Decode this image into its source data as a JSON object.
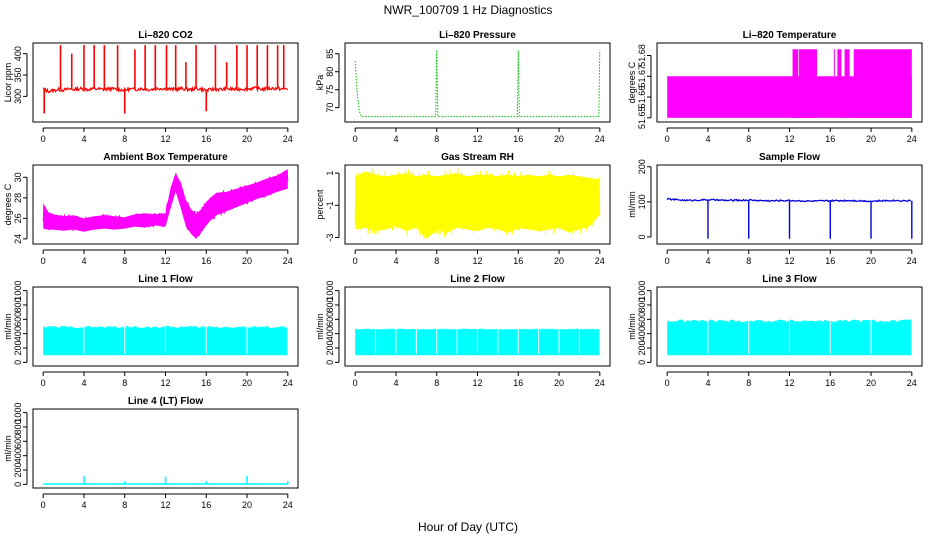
{
  "figure": {
    "title": "NWR_100709  1 Hz Diagnostics",
    "xlabel": "Hour of Day (UTC)"
  },
  "chart_data": [
    {
      "id": "co2",
      "type": "line",
      "title": "Li–820 CO2",
      "ylabel": "Licor ppm",
      "color": "#ff0000",
      "xlim": [
        -1,
        25
      ],
      "ylim": [
        240,
        425
      ],
      "xticks": [
        0,
        4,
        8,
        12,
        16,
        20,
        24
      ],
      "yticks": [
        300,
        350,
        400
      ],
      "series": [
        {
          "x": [
            0,
            0.5,
            1,
            1.5,
            2,
            2.5,
            3,
            3.5,
            4,
            4.5,
            5,
            5.5,
            6,
            6.5,
            7,
            7.5,
            8,
            8.5,
            9,
            9.5,
            10,
            10.5,
            11,
            11.5,
            12,
            12.5,
            13,
            13.5,
            14,
            14.5,
            15,
            15.5,
            16,
            16.5,
            17,
            17.5,
            18,
            18.5,
            19,
            19.5,
            20,
            20.5,
            21,
            21.5,
            22,
            22.5,
            23,
            23.5,
            24
          ],
          "values": [
            318,
            312,
            314,
            316,
            315,
            317,
            316,
            318,
            317,
            316,
            318,
            317,
            316,
            318,
            317,
            316,
            315,
            317,
            316,
            318,
            317,
            316,
            318,
            319,
            318,
            317,
            316,
            318,
            317,
            316,
            318,
            317,
            314,
            316,
            317,
            316,
            318,
            317,
            316,
            318,
            317,
            319,
            318,
            317,
            318,
            319,
            318,
            317,
            318
          ],
          "spike_hours": [
            1.7,
            2.8,
            4.0,
            5.0,
            6.0,
            7.3,
            9.0,
            10.0,
            11.0,
            12.1,
            13.0,
            14.0,
            15.0,
            16.9,
            18.0,
            19.0,
            20.0,
            21.0,
            22.0,
            23.0,
            23.6
          ],
          "spike_values": [
            420,
            400,
            420,
            420,
            420,
            420,
            410,
            420,
            420,
            420,
            420,
            380,
            420,
            420,
            380,
            420,
            420,
            420,
            420,
            420,
            420
          ],
          "dip_hours": [
            0.1,
            8.0,
            16.0
          ],
          "dip_values": [
            260,
            260,
            265
          ]
        }
      ]
    },
    {
      "id": "pressure",
      "type": "line",
      "title": "Li–820 Pressure",
      "ylabel": "kPa",
      "color": "#00bb00",
      "xlim": [
        -1,
        25
      ],
      "ylim": [
        66,
        88
      ],
      "xticks": [
        0,
        4,
        8,
        12,
        16,
        20,
        24
      ],
      "yticks": [
        70,
        75,
        80,
        85
      ],
      "series": [
        {
          "baseline": 67.5,
          "x": [
            0,
            0.2,
            0.4,
            0.6,
            1,
            4,
            7.9,
            8.0,
            8.1,
            12,
            15.9,
            16.0,
            16.1,
            20,
            23.9,
            24.0
          ],
          "values": [
            83,
            74,
            69,
            67.5,
            67.5,
            67.5,
            67.5,
            86,
            67.5,
            67.5,
            67.5,
            86,
            67.5,
            67.5,
            67.5,
            86
          ]
        }
      ]
    },
    {
      "id": "licor_temp",
      "type": "area",
      "title": "Li–820 Temperature",
      "ylabel": "degrees C",
      "color": "#ff00ff",
      "xlim": [
        -1,
        25
      ],
      "ylim": [
        51.648,
        51.686
      ],
      "xticks": [
        0,
        4,
        8,
        12,
        16,
        20,
        24
      ],
      "yticks": [
        51.65,
        51.66,
        51.67,
        51.68
      ],
      "series": [
        {
          "low": 51.65,
          "mid": 51.67,
          "high": 51.683,
          "high_intervals": [
            [
              12.3,
              14.7
            ],
            [
              16.7,
              17.1
            ],
            [
              17.4,
              17.9
            ],
            [
              18.3,
              24.0
            ]
          ]
        }
      ]
    },
    {
      "id": "box_temp",
      "type": "area",
      "title": "Ambient Box Temperature",
      "ylabel": "degrees C",
      "color": "#ff00ff",
      "xlim": [
        -1,
        25
      ],
      "ylim": [
        23.5,
        31.2
      ],
      "xticks": [
        0,
        4,
        8,
        12,
        16,
        20,
        24
      ],
      "yticks": [
        24,
        26,
        28,
        30
      ],
      "series": [
        {
          "x": [
            0,
            0.5,
            1,
            2,
            3,
            4,
            5,
            6,
            7,
            8,
            9,
            10,
            11,
            12,
            12.5,
            13,
            13.5,
            14,
            14.5,
            15,
            15.5,
            16,
            16.5,
            17,
            18,
            19,
            20,
            21,
            22,
            23,
            24
          ],
          "upper": [
            27.5,
            26.6,
            26.4,
            26.2,
            26.3,
            26.0,
            26.2,
            26.3,
            26.2,
            26.1,
            26.4,
            26.5,
            26.4,
            26.5,
            29.0,
            30.4,
            29.5,
            27.8,
            26.9,
            26.4,
            26.9,
            27.6,
            28.1,
            28.5,
            28.6,
            28.9,
            29.2,
            29.5,
            29.9,
            30.2,
            30.8
          ],
          "lower": [
            25.0,
            24.9,
            24.9,
            24.8,
            24.9,
            24.7,
            24.9,
            25.0,
            24.9,
            25.0,
            25.2,
            25.1,
            25.3,
            25.2,
            27.0,
            28.6,
            27.0,
            25.2,
            24.5,
            24.0,
            24.6,
            25.3,
            25.9,
            26.3,
            26.7,
            27.1,
            27.5,
            27.9,
            28.2,
            28.6,
            28.9
          ]
        }
      ]
    },
    {
      "id": "rh",
      "type": "area",
      "title": "Gas Stream RH",
      "ylabel": "percent",
      "color": "#ffff00",
      "xlim": [
        -1,
        25
      ],
      "ylim": [
        -3.4,
        1.5
      ],
      "xticks": [
        0,
        4,
        8,
        12,
        16,
        20,
        24
      ],
      "yticks": [
        -3,
        -1,
        1
      ],
      "series": [
        {
          "x": [
            0,
            1,
            2,
            3,
            4,
            5,
            6,
            7,
            8,
            9,
            10,
            11,
            12,
            13,
            14,
            15,
            16,
            17,
            18,
            19,
            20,
            21,
            22,
            23,
            24
          ],
          "upper": [
            0.8,
            1.1,
            0.9,
            0.8,
            0.9,
            1.0,
            0.8,
            0.9,
            0.8,
            0.9,
            1.0,
            0.8,
            0.9,
            0.9,
            0.8,
            0.9,
            0.8,
            0.9,
            0.8,
            0.9,
            0.8,
            0.9,
            0.8,
            0.7,
            0.6
          ],
          "lower": [
            -2.5,
            -2.4,
            -2.6,
            -2.5,
            -2.3,
            -2.6,
            -2.4,
            -3.1,
            -2.5,
            -2.7,
            -2.4,
            -2.5,
            -2.6,
            -2.4,
            -2.5,
            -2.7,
            -2.4,
            -2.5,
            -2.6,
            -2.5,
            -2.4,
            -2.7,
            -2.5,
            -2.3,
            -1.6
          ]
        }
      ]
    },
    {
      "id": "sample_flow",
      "type": "line",
      "title": "Sample Flow",
      "ylabel": "ml/min",
      "color": "#0000dd",
      "xlim": [
        -1,
        25
      ],
      "ylim": [
        -20,
        205
      ],
      "xticks": [
        0,
        4,
        8,
        12,
        16,
        20,
        24
      ],
      "yticks": [
        0,
        100,
        200
      ],
      "series": [
        {
          "x": [
            0,
            2,
            4,
            6,
            8,
            10,
            12,
            14,
            16,
            18,
            20,
            22,
            24
          ],
          "values": [
            108,
            104,
            106,
            104,
            105,
            103,
            104,
            102,
            103,
            104,
            102,
            104,
            103
          ],
          "dip_hours": [
            4.0,
            8.0,
            12.0,
            16.0,
            20.0,
            24.0
          ],
          "dip_values": [
            -5,
            -5,
            -5,
            -5,
            -5,
            -5
          ]
        }
      ]
    },
    {
      "id": "line1",
      "type": "area",
      "title": "Line 1 Flow",
      "ylabel": "ml/min",
      "color": "#00ffff",
      "xlim": [
        -1,
        25
      ],
      "ylim": [
        -50,
        1050
      ],
      "xticks": [
        0,
        4,
        8,
        12,
        16,
        20,
        24
      ],
      "yticks": [
        0,
        200,
        400,
        600,
        800,
        1000
      ],
      "series": [
        {
          "low": 100,
          "high": 480,
          "gap_hours": [
            4,
            8,
            12,
            16,
            20,
            24
          ],
          "high_peak": 510
        }
      ]
    },
    {
      "id": "line2",
      "type": "area",
      "title": "Line 2 Flow",
      "ylabel": "ml/min",
      "color": "#00ffff",
      "xlim": [
        -1,
        25
      ],
      "ylim": [
        -50,
        1050
      ],
      "xticks": [
        0,
        4,
        8,
        12,
        16,
        20,
        24
      ],
      "yticks": [
        0,
        200,
        400,
        600,
        800,
        1000
      ],
      "series": [
        {
          "low": 100,
          "high": 460,
          "gap_hours": [
            2,
            4,
            6,
            8,
            10,
            12,
            14,
            16,
            18,
            20,
            22,
            24
          ],
          "high_peak": 470
        }
      ]
    },
    {
      "id": "line3",
      "type": "area",
      "title": "Line 3 Flow",
      "ylabel": "ml/min",
      "color": "#00ffff",
      "xlim": [
        -1,
        25
      ],
      "ylim": [
        -50,
        1050
      ],
      "xticks": [
        0,
        4,
        8,
        12,
        16,
        20,
        24
      ],
      "yticks": [
        0,
        200,
        400,
        600,
        800,
        1000
      ],
      "series": [
        {
          "low": 100,
          "high": 560,
          "gap_hours": [
            4,
            8,
            12,
            16,
            20,
            24
          ],
          "high_peak": 600
        }
      ]
    },
    {
      "id": "line4",
      "type": "line",
      "title": "Line 4 (LT) Flow",
      "ylabel": "ml/min",
      "color": "#00ffff",
      "xlim": [
        -1,
        25
      ],
      "ylim": [
        -50,
        1050
      ],
      "xticks": [
        0,
        4,
        8,
        12,
        16,
        20,
        24
      ],
      "yticks": [
        0,
        200,
        400,
        600,
        800,
        1000
      ],
      "series": [
        {
          "baseline": 5,
          "spike_hours": [
            4.0,
            8.0,
            12.0,
            16.0,
            20.0,
            24.0
          ],
          "spike_values": [
            120,
            45,
            110,
            45,
            120,
            45
          ]
        }
      ]
    }
  ]
}
